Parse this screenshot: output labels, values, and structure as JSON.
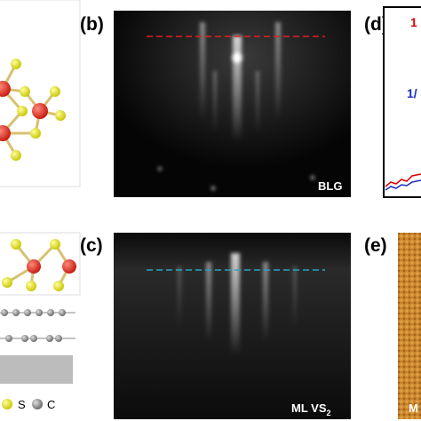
{
  "panels": {
    "b": {
      "label": "(b)",
      "image_label": "BLG"
    },
    "c": {
      "label": "(c)",
      "image_label": "ML VS",
      "image_label_sub": "2"
    },
    "d": {
      "label": "(d)",
      "curve_labels": [
        "1",
        "1/"
      ]
    },
    "e": {
      "label": "(e)",
      "image_label": "M"
    }
  },
  "legend": [
    "S",
    "C"
  ]
}
